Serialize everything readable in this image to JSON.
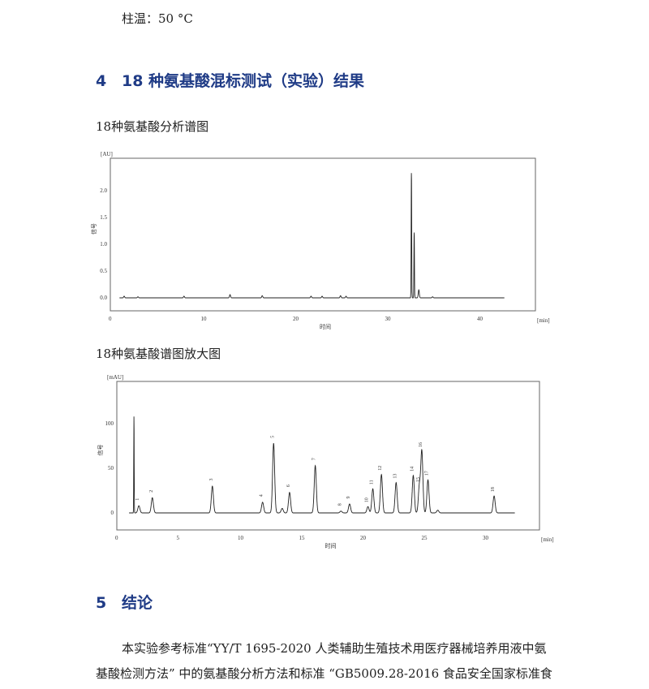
{
  "intro_line": "柱温：50 °C",
  "section4": {
    "number": "4",
    "title": "18 种氨基酸混标测试（实验）结果"
  },
  "figure1_caption": "18种氨基酸分析谱图",
  "figure2_caption": "18种氨基酸谱图放大图",
  "section5": {
    "number": "5",
    "title": "结论"
  },
  "conclusion_lines": [
    "本实验参考标准“YY/T 1695-2020  人类辅助生殖技术用医疗器械培养用液中氨",
    "基酸检测方法” 中的氨基酸分析方法和标准 “GB5009.28-2016 食品安全国家标准食"
  ],
  "chart_data": [
    {
      "type": "line",
      "yunit": "[AU]",
      "ylabel": "信号",
      "xlabel": "时间",
      "xunit": "[min]",
      "xlim": [
        0,
        46
      ],
      "ylim": [
        -0.25,
        2.5
      ],
      "xticks": [
        "0",
        "10",
        "20",
        "30",
        "40"
      ],
      "yticks": [
        "0.0",
        "0.5",
        "1.0",
        "1.5",
        "2.0"
      ],
      "trace_end": 42.8,
      "peaks": [
        {
          "x": 1.5,
          "y": 0.03
        },
        {
          "x": 3.0,
          "y": 0.02
        },
        {
          "x": 8.0,
          "y": 0.03
        },
        {
          "x": 13.0,
          "y": 0.06
        },
        {
          "x": 16.5,
          "y": 0.04
        },
        {
          "x": 21.8,
          "y": 0.03
        },
        {
          "x": 23.0,
          "y": 0.03
        },
        {
          "x": 25.0,
          "y": 0.04
        },
        {
          "x": 25.6,
          "y": 0.03
        },
        {
          "x": 32.7,
          "y": 2.33
        },
        {
          "x": 33.0,
          "y": 1.22
        },
        {
          "x": 33.5,
          "y": 0.15
        },
        {
          "x": 35.0,
          "y": 0.02
        }
      ]
    },
    {
      "type": "line",
      "yunit": "[mAU]",
      "ylabel": "信号",
      "xlabel": "时间",
      "xunit": "[min]",
      "xlim": [
        0,
        32.5
      ],
      "ylim": [
        -20,
        125
      ],
      "xticks": [
        "0",
        "5",
        "10",
        "15",
        "20",
        "25",
        "30"
      ],
      "yticks": [
        "0",
        "50",
        "100"
      ],
      "trace_start": 1.0,
      "trace_end": 32.5,
      "solvent_peak": {
        "x": 1.4,
        "y": 108
      },
      "peaks": [
        {
          "label": "1",
          "x": 1.8,
          "y": 8
        },
        {
          "label": "2",
          "x": 2.9,
          "y": 17
        },
        {
          "label": "3",
          "x": 7.8,
          "y": 30
        },
        {
          "label": "4",
          "x": 11.9,
          "y": 12
        },
        {
          "label": "5",
          "x": 12.8,
          "y": 78
        },
        {
          "label": "",
          "x": 13.5,
          "y": 5
        },
        {
          "label": "6",
          "x": 14.1,
          "y": 23
        },
        {
          "label": "7",
          "x": 16.2,
          "y": 53
        },
        {
          "label": "8",
          "x": 18.3,
          "y": 2
        },
        {
          "label": "9",
          "x": 19.0,
          "y": 10
        },
        {
          "label": "10",
          "x": 20.5,
          "y": 7
        },
        {
          "label": "11",
          "x": 20.9,
          "y": 27
        },
        {
          "label": "12",
          "x": 21.6,
          "y": 43
        },
        {
          "label": "13",
          "x": 22.8,
          "y": 34
        },
        {
          "label": "14",
          "x": 24.2,
          "y": 42
        },
        {
          "label": "15",
          "x": 24.7,
          "y": 30
        },
        {
          "label": "16",
          "x": 24.9,
          "y": 69
        },
        {
          "label": "17",
          "x": 25.4,
          "y": 37
        },
        {
          "label": "",
          "x": 26.2,
          "y": 3
        },
        {
          "label": "18",
          "x": 30.8,
          "y": 19
        }
      ]
    }
  ]
}
